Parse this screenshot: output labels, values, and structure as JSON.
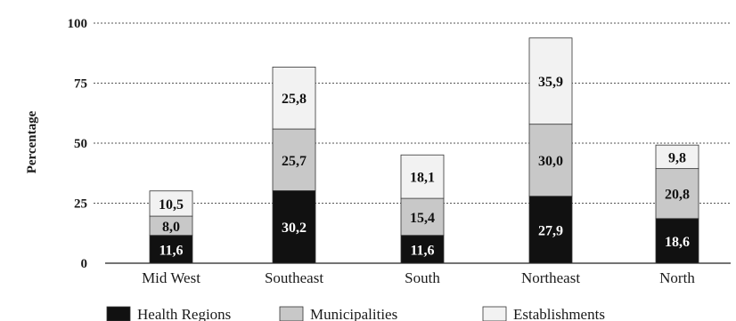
{
  "chart_data": {
    "type": "bar",
    "stacked": true,
    "categories": [
      "Mid West",
      "Southeast",
      "South",
      "Northeast",
      "North"
    ],
    "series": [
      {
        "name": "Health Regions",
        "values": [
          11.6,
          30.2,
          11.6,
          27.9,
          18.6
        ],
        "labels": [
          "11,6",
          "30,2",
          "11,6",
          "27,9",
          "18,6"
        ],
        "color": "#111111"
      },
      {
        "name": "Municipalities",
        "values": [
          8.0,
          25.7,
          15.4,
          30.0,
          20.8
        ],
        "labels": [
          "8,0",
          "25,7",
          "15,4",
          "30,0",
          "20,8"
        ],
        "color": "#c8c8c8"
      },
      {
        "name": "Establishments",
        "values": [
          10.5,
          25.8,
          18.1,
          35.9,
          9.8
        ],
        "labels": [
          "10,5",
          "25,8",
          "18,1",
          "35,9",
          "9,8"
        ],
        "color": "#f2f2f2"
      }
    ],
    "ylabel": "Percentage",
    "ylim": [
      0,
      100
    ],
    "yticks": [
      "0",
      "25",
      "50",
      "75",
      "100"
    ],
    "grid": true,
    "legend_position": "bottom"
  }
}
